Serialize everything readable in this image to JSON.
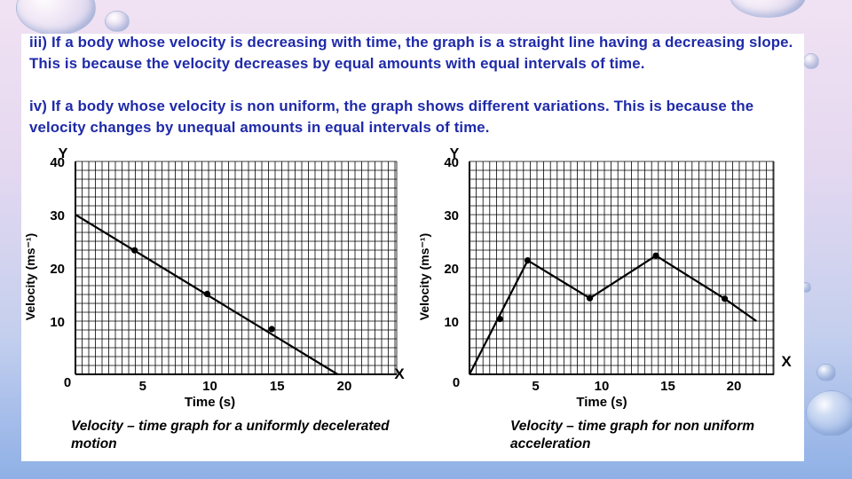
{
  "slide": {
    "paragraph_iii": "iii) If a body whose velocity is decreasing with time, the graph is a straight line having a decreasing slope. This is because the velocity decreases by equal amounts with equal intervals of time.",
    "paragraph_iv": "iv) If a body whose velocity is non uniform, the graph shows different variations. This is because the velocity changes by unequal amounts in equal intervals of time."
  },
  "colors": {
    "text_blue": "#1f2aa8",
    "background_top": "#f1e2f3",
    "background_bottom": "#8fb0e6"
  },
  "chart_data": [
    {
      "type": "line",
      "title": "",
      "caption": "Velocity – time graph for a uniformly decelerated motion",
      "xlabel": "Time (s)",
      "ylabel": "Velocity (ms⁻¹)",
      "x_axis_letter": "X",
      "y_axis_letter": "Y",
      "origin_label": "0",
      "xlim": [
        0,
        20
      ],
      "ylim": [
        0,
        40
      ],
      "xticks": [
        5,
        10,
        15,
        20
      ],
      "yticks": [
        10,
        20,
        30,
        40
      ],
      "grid": true,
      "series": [
        {
          "line": [
            [
              0,
              30
            ],
            [
              19.5,
              0
            ]
          ],
          "points": [
            [
              4.4,
              23.3
            ],
            [
              9.8,
              15.1
            ],
            [
              14.6,
              8.5
            ]
          ]
        }
      ]
    },
    {
      "type": "line",
      "title": "",
      "caption": "Velocity – time graph for non uniform acceleration",
      "xlabel": "Time (s)",
      "ylabel": "Velocity (ms⁻¹)",
      "x_axis_letter": "X",
      "y_axis_letter": "Y",
      "origin_label": "0",
      "xlim": [
        0,
        22.5
      ],
      "ylim": [
        0,
        40
      ],
      "xticks": [
        5,
        10,
        15,
        20
      ],
      "yticks": [
        10,
        20,
        30,
        40
      ],
      "grid": true,
      "series": [
        {
          "line": [
            [
              0,
              0
            ],
            [
              4.4,
              21.4
            ],
            [
              9.1,
              14.3
            ],
            [
              14.1,
              22.3
            ],
            [
              19.3,
              14.2
            ],
            [
              21.7,
              10
            ]
          ],
          "points": [
            [
              2.3,
              10.4
            ],
            [
              4.4,
              21.4
            ],
            [
              9.1,
              14.3
            ],
            [
              14.1,
              22.3
            ],
            [
              19.3,
              14.2
            ]
          ]
        }
      ]
    }
  ]
}
